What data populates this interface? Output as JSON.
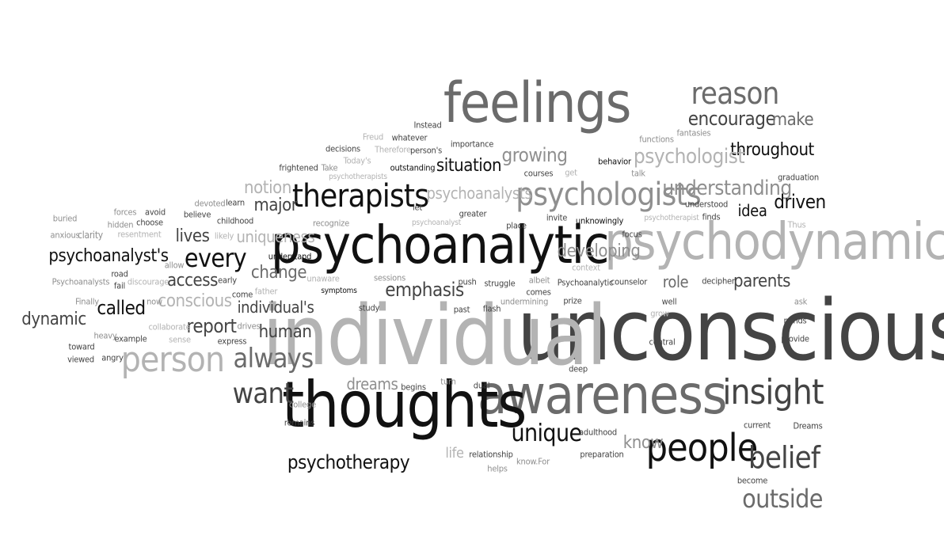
{
  "words": [
    "unconscious",
    "individual",
    "psychoanalytic",
    "psychodynamic",
    "awareness",
    "thoughts",
    "feelings",
    "insight",
    "people",
    "psychologists",
    "therapists",
    "person",
    "belief",
    "unique",
    "always",
    "outside",
    "reason",
    "want",
    "every",
    "psychoanalyst's",
    "psychotherapy",
    "encourage",
    "throughout",
    "understanding",
    "psychologist",
    "growing",
    "situation",
    "notion",
    "emphasis",
    "report",
    "human",
    "dynamic",
    "lives",
    "access",
    "called",
    "major",
    "change",
    "uniqueness",
    "conscious",
    "individual's",
    "developing",
    "parents",
    "role",
    "driven",
    "idea",
    "make",
    "dreams",
    "know",
    "psychoanalysts",
    "life",
    "Psychoanalysts",
    "buried",
    "anxious",
    "forces",
    "hidden",
    "clarity",
    "avoid",
    "choose",
    "resentment",
    "believe",
    "devoted",
    "learn",
    "childhood",
    "likely",
    "frightened",
    "Take",
    "decisions",
    "Today's",
    "psychotherapists",
    "Freud",
    "Therefore",
    "whatever",
    "Instead",
    "person's",
    "outstanding",
    "importance",
    "courses",
    "get",
    "behavior",
    "functions",
    "fantasies",
    "talk",
    "graduation",
    "understood",
    "finds",
    "Thus",
    "psychotherapist",
    "invite",
    "unknowingly",
    "focus",
    "place",
    "greater",
    "psychoanalyst",
    "let",
    "recognize",
    "understand",
    "allow",
    "early",
    "unaware",
    "sessions",
    "push",
    "struggle",
    "albeit",
    "comes",
    "Psychoanalytic",
    "counselor",
    "context",
    "decipher",
    "well",
    "ask",
    "minds",
    "provide",
    "grow",
    "central",
    "prize",
    "flash",
    "undermining",
    "past",
    "study",
    "symptoms",
    "come",
    "father",
    "drives",
    "express",
    "collaborate",
    "sense",
    "now",
    "Finally",
    "discourage",
    "fail",
    "road",
    "heavy",
    "example",
    "toward",
    "viewed",
    "angry",
    "dual",
    "turn",
    "begins",
    "college",
    "remains",
    "deep",
    "adulthood",
    "preparation",
    "relationship",
    "helps",
    "know.For",
    "current",
    "Dreams",
    "become"
  ]
}
